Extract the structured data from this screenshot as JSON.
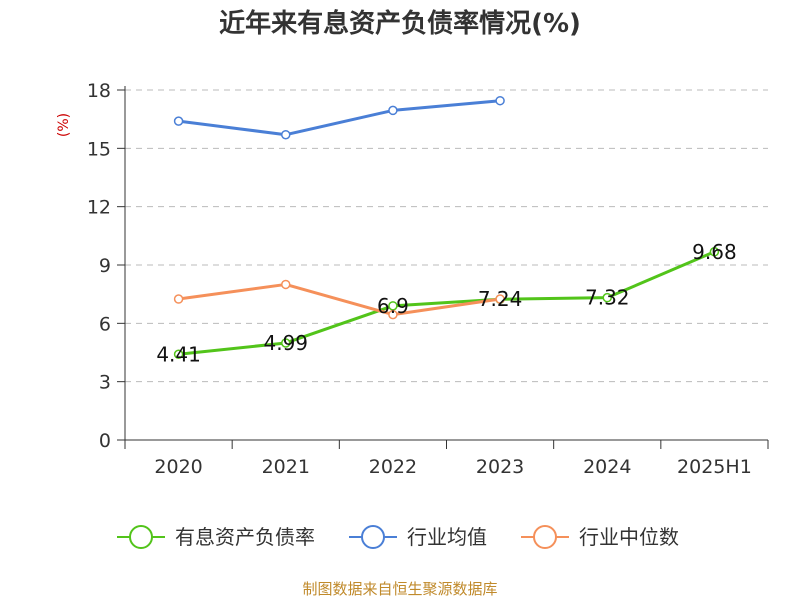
{
  "chart_data": {
    "type": "line",
    "title": "近年来有息资产负债率情况(%)",
    "ylabel": "(%)",
    "categories": [
      "2020",
      "2021",
      "2022",
      "2023",
      "2024",
      "2025H1"
    ],
    "ylim": [
      0,
      18
    ],
    "yticks": [
      "0",
      "3",
      "6",
      "9",
      "12",
      "15",
      "18"
    ],
    "grid": true,
    "legend_position": "bottom",
    "series": [
      {
        "name": "有息资产负债率",
        "color": "#52c41a",
        "values": [
          4.41,
          4.99,
          6.9,
          7.24,
          7.32,
          9.68
        ],
        "labels": [
          "4.41",
          "4.99",
          "6.9",
          "7.24",
          "7.32",
          "9.68"
        ]
      },
      {
        "name": "行业均值",
        "color": "#4a7fd6",
        "values": [
          16.4,
          15.7,
          16.95,
          17.45,
          null,
          null
        ]
      },
      {
        "name": "行业中位数",
        "color": "#f5905a",
        "values": [
          7.25,
          8.0,
          6.45,
          7.25,
          null,
          null
        ]
      }
    ],
    "source": "制图数据来自恒生聚源数据库"
  }
}
